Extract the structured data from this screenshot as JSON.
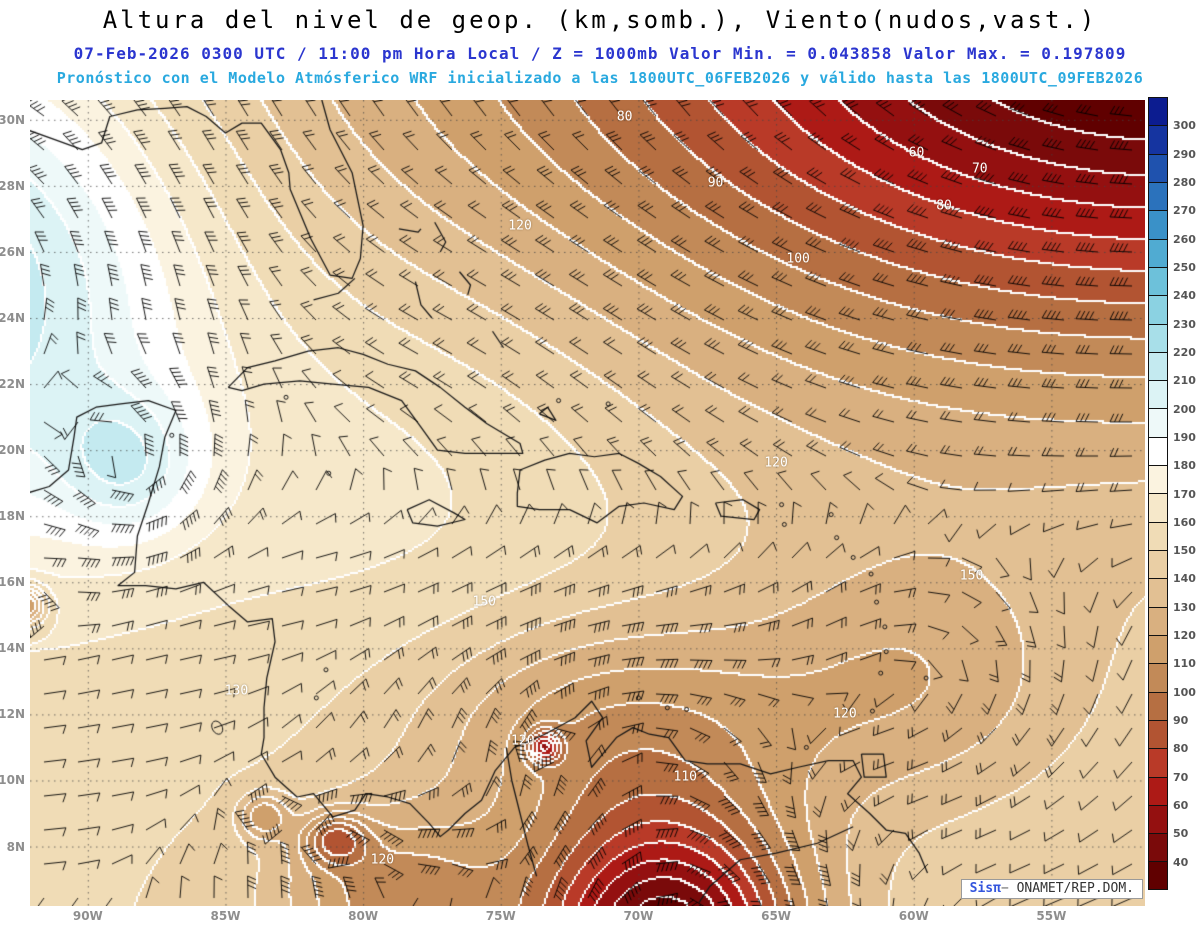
{
  "header": {
    "title": "Altura del nivel de geop. (km,somb.), Viento(nudos,vast.)",
    "subtitle1": "07-Feb-2026 0300 UTC / 11:00 pm Hora Local / Z = 1000mb Valor Min. = 0.043858  Valor Max. = 0.197809",
    "subtitle2": "Pronóstico con el Modelo Atmósferico WRF inicializado a las 1800UTC_06FEB2026 y válido hasta las  1800UTC_09FEB2026",
    "subtitle1_color": "#2b36cf",
    "subtitle2_color": "#29a9df"
  },
  "branding": {
    "app": "Sisπ",
    "dash": "− ",
    "org": "ONAMET/REP.DOM."
  },
  "chart_data": {
    "type": "heatmap",
    "title": "Altura del nivel de geop. (km,somb.), Viento(nudos,vast.)",
    "valid_time": "07-Feb-2026 0300 UTC / 11:00 pm Hora Local",
    "level": "1000mb",
    "value_min": 0.043858,
    "value_max": 0.197809,
    "model": "WRF",
    "model_init": "1800UTC_06FEB2026",
    "model_valid_until": "1800UTC_09FEB2026",
    "shading_units": "km",
    "wind_units": "nudos",
    "x_ticks": [
      "90W",
      "85W",
      "80W",
      "75W",
      "70W",
      "65W",
      "60W",
      "55W"
    ],
    "y_ticks": [
      "30N",
      "28N",
      "26N",
      "24N",
      "22N",
      "20N",
      "18N",
      "16N",
      "14N",
      "12N",
      "10N",
      "8N"
    ],
    "lon_range": [
      -92.1,
      -51.6
    ],
    "lat_range": [
      6.2,
      30.6
    ],
    "grid": true,
    "legend_position": "right",
    "colorbar": {
      "levels": [
        40,
        50,
        60,
        70,
        80,
        90,
        100,
        110,
        120,
        130,
        140,
        150,
        160,
        170,
        180,
        190,
        200,
        210,
        220,
        230,
        240,
        250,
        260,
        270,
        280,
        290,
        300
      ],
      "colors_low_to_high": [
        "#600000",
        "#7a0a0a",
        "#941010",
        "#ad1a16",
        "#b93a28",
        "#b25432",
        "#b66f42",
        "#c28a58",
        "#cfa06c",
        "#d9b080",
        "#e2c093",
        "#eacfa5",
        "#f0dcb6",
        "#f6e8ca",
        "#fbf3e0",
        "#ffffff",
        "#eef9f9",
        "#dcf3f5",
        "#c4eaf0",
        "#a8dfe9",
        "#8bd2e2",
        "#6dc1da",
        "#50abd2",
        "#3a91c8",
        "#2b72bc",
        "#1f52ae",
        "#1534a0",
        "#0c1c90"
      ]
    },
    "contour_labels": [
      {
        "text": "80",
        "lon": -70.5,
        "lat": 30.1
      },
      {
        "text": "60",
        "lon": -59.9,
        "lat": 29.0
      },
      {
        "text": "70",
        "lon": -57.6,
        "lat": 28.5
      },
      {
        "text": "90",
        "lon": -67.2,
        "lat": 28.1
      },
      {
        "text": "80",
        "lon": -58.9,
        "lat": 27.4
      },
      {
        "text": "120",
        "lon": -74.3,
        "lat": 26.8
      },
      {
        "text": "100",
        "lon": -64.2,
        "lat": 25.8
      },
      {
        "text": "120",
        "lon": -65.0,
        "lat": 19.6
      },
      {
        "text": "150",
        "lon": -57.9,
        "lat": 16.2
      },
      {
        "text": "150",
        "lon": -75.6,
        "lat": 15.4
      },
      {
        "text": "130",
        "lon": -84.6,
        "lat": 12.7
      },
      {
        "text": "120",
        "lon": -62.5,
        "lat": 12.0
      },
      {
        "text": "120",
        "lon": -74.2,
        "lat": 11.2
      },
      {
        "text": "110",
        "lon": -68.3,
        "lat": 10.1
      },
      {
        "text": "120",
        "lon": -79.3,
        "lat": 7.6
      }
    ],
    "field_approx_gaussians": {
      "base": 150,
      "bumps": [
        {
          "lon": -49,
          "lat": 34,
          "amp": -95,
          "sx": 20,
          "sy": 10
        },
        {
          "lon": -58,
          "lat": 33,
          "amp": -40,
          "sx": 28,
          "sy": 12
        },
        {
          "lon": -95,
          "lat": 25,
          "amp": 75,
          "sx": 9,
          "sy": 8
        },
        {
          "lon": -88.5,
          "lat": 19.5,
          "amp": 34,
          "sx": 2.6,
          "sy": 2.2
        },
        {
          "lon": -69,
          "lat": 5,
          "amp": -120,
          "sx": 5,
          "sy": 4
        },
        {
          "lon": -71,
          "lat": 11.5,
          "amp": -38,
          "sx": 7,
          "sy": 3.5
        },
        {
          "lon": -60,
          "lat": 13,
          "amp": -25,
          "sx": 6,
          "sy": 4
        },
        {
          "lon": -81,
          "lat": 8.2,
          "amp": -45,
          "sx": 1.2,
          "sy": 0.8
        },
        {
          "lon": -83.6,
          "lat": 8.9,
          "amp": -35,
          "sx": 0.9,
          "sy": 0.7
        },
        {
          "lon": -73.4,
          "lat": 11,
          "amp": -55,
          "sx": 0.6,
          "sy": 0.5
        },
        {
          "lon": -92.3,
          "lat": 15.3,
          "amp": -60,
          "sx": 0.8,
          "sy": 0.6
        },
        {
          "lon": -78,
          "lat": 20,
          "amp": 18,
          "sx": 10,
          "sy": 7
        },
        {
          "lon": -79,
          "lat": 6.5,
          "amp": -45,
          "sx": 4,
          "sy": 2.5
        }
      ]
    }
  }
}
